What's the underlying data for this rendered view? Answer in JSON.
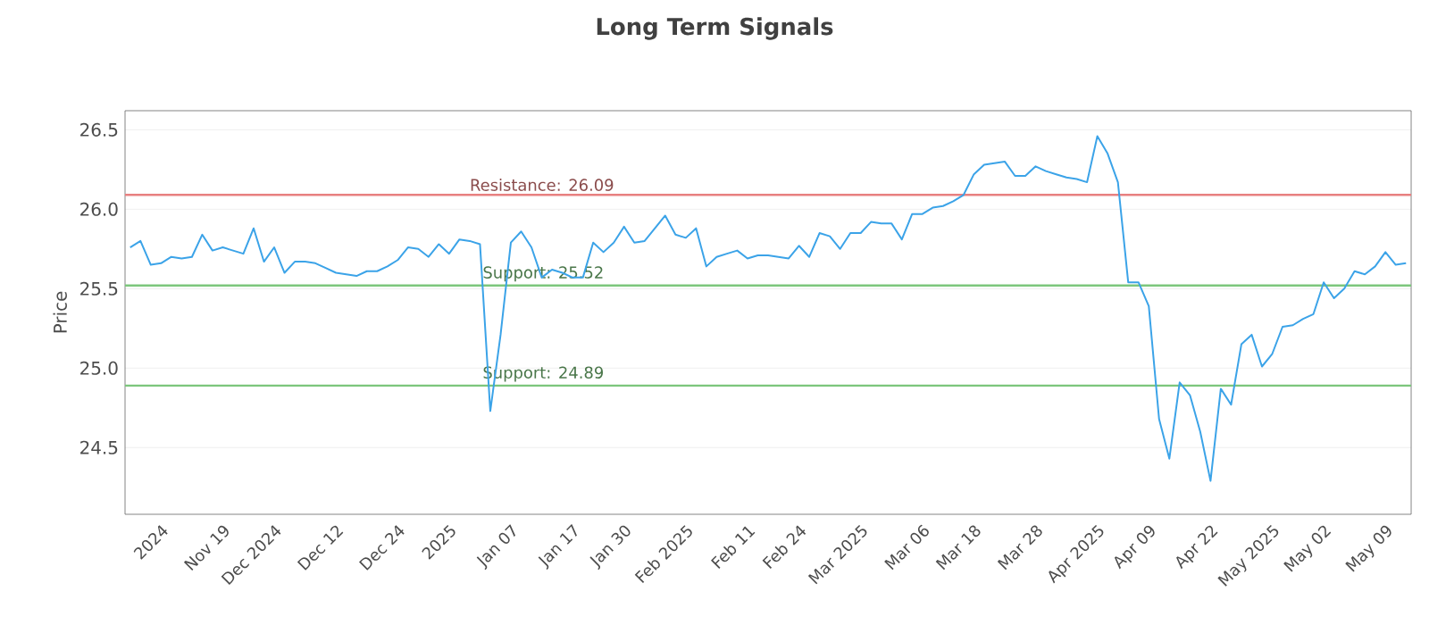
{
  "chart_data": {
    "type": "line",
    "title": "Long Term Signals",
    "ylabel": "Price",
    "categories": [
      null,
      null,
      null,
      "2024",
      null,
      null,
      null,
      null,
      null,
      "Nov 19",
      null,
      null,
      null,
      null,
      "Dec 2024",
      null,
      null,
      null,
      null,
      null,
      "Dec 12",
      null,
      null,
      null,
      null,
      null,
      "Dec 24",
      null,
      null,
      null,
      null,
      "2025",
      null,
      null,
      null,
      null,
      null,
      "Jan 07",
      null,
      null,
      null,
      null,
      null,
      "Jan 17",
      null,
      null,
      null,
      null,
      "Jan 30",
      null,
      null,
      null,
      null,
      null,
      "Feb 2025",
      null,
      null,
      null,
      null,
      null,
      "Feb 11",
      null,
      null,
      null,
      null,
      "Feb 24",
      null,
      null,
      null,
      null,
      null,
      "Mar 2025",
      null,
      null,
      null,
      null,
      null,
      "Mar 06",
      null,
      null,
      null,
      null,
      "Mar 18",
      null,
      null,
      null,
      null,
      null,
      "Mar 28",
      null,
      null,
      null,
      null,
      null,
      "Apr 2025",
      null,
      null,
      null,
      null,
      "Apr 09",
      null,
      null,
      null,
      null,
      null,
      "Apr 22",
      null,
      null,
      null,
      null,
      null,
      "May 2025",
      null,
      null,
      null,
      null,
      "May 02",
      null,
      null,
      null,
      null,
      null,
      "May 09",
      null,
      null
    ],
    "series": [
      {
        "color": "#3ba3e8",
        "values": [
          25.76,
          25.8,
          25.65,
          25.66,
          25.7,
          25.69,
          25.7,
          25.84,
          25.74,
          25.76,
          25.74,
          25.72,
          25.88,
          25.67,
          25.76,
          25.6,
          25.67,
          25.67,
          25.66,
          25.63,
          25.6,
          25.59,
          25.58,
          25.61,
          25.61,
          25.64,
          25.68,
          25.76,
          25.75,
          25.7,
          25.78,
          25.72,
          25.81,
          25.8,
          25.78,
          24.73,
          25.21,
          25.79,
          25.86,
          25.76,
          25.57,
          25.62,
          25.6,
          25.57,
          25.57,
          25.79,
          25.73,
          25.79,
          25.89,
          25.79,
          25.8,
          25.88,
          25.96,
          25.84,
          25.82,
          25.88,
          25.64,
          25.7,
          25.72,
          25.74,
          25.69,
          25.71,
          25.71,
          25.7,
          25.69,
          25.77,
          25.7,
          25.85,
          25.83,
          25.75,
          25.85,
          25.85,
          25.92,
          25.91,
          25.91,
          25.81,
          25.97,
          25.97,
          26.01,
          26.02,
          26.05,
          26.09,
          26.22,
          26.28,
          26.29,
          26.3,
          26.21,
          26.21,
          26.27,
          26.24,
          26.22,
          26.2,
          26.19,
          26.17,
          26.46,
          26.35,
          26.17,
          25.54,
          25.54,
          25.39,
          24.68,
          24.43,
          24.91,
          24.83,
          24.6,
          24.29,
          24.87,
          24.77,
          25.15,
          25.21,
          25.01,
          25.09,
          25.26,
          25.27,
          25.31,
          25.34,
          25.54,
          25.44,
          25.5,
          25.61,
          25.59,
          25.64,
          25.73,
          25.65,
          25.66
        ]
      }
    ],
    "ylim": [
      24.08,
      26.62
    ],
    "yticks": [
      24.5,
      {
        "value": 25,
        "label": "25.0"
      },
      25.5,
      {
        "value": 26,
        "label": "26.0"
      },
      26.5
    ],
    "grid": "y",
    "marker": "none",
    "line_style": "solid",
    "ref_lines": [
      {
        "axis": "y",
        "value": 26.09,
        "label": "Resistance: 26.09",
        "color": "#e88080"
      },
      {
        "axis": "y",
        "value": 25.52,
        "label": "Support: 25.52",
        "color": "#7cc67c"
      },
      {
        "axis": "y",
        "value": 24.89,
        "label": "Support: 24.89",
        "color": "#7cc67c"
      }
    ]
  }
}
